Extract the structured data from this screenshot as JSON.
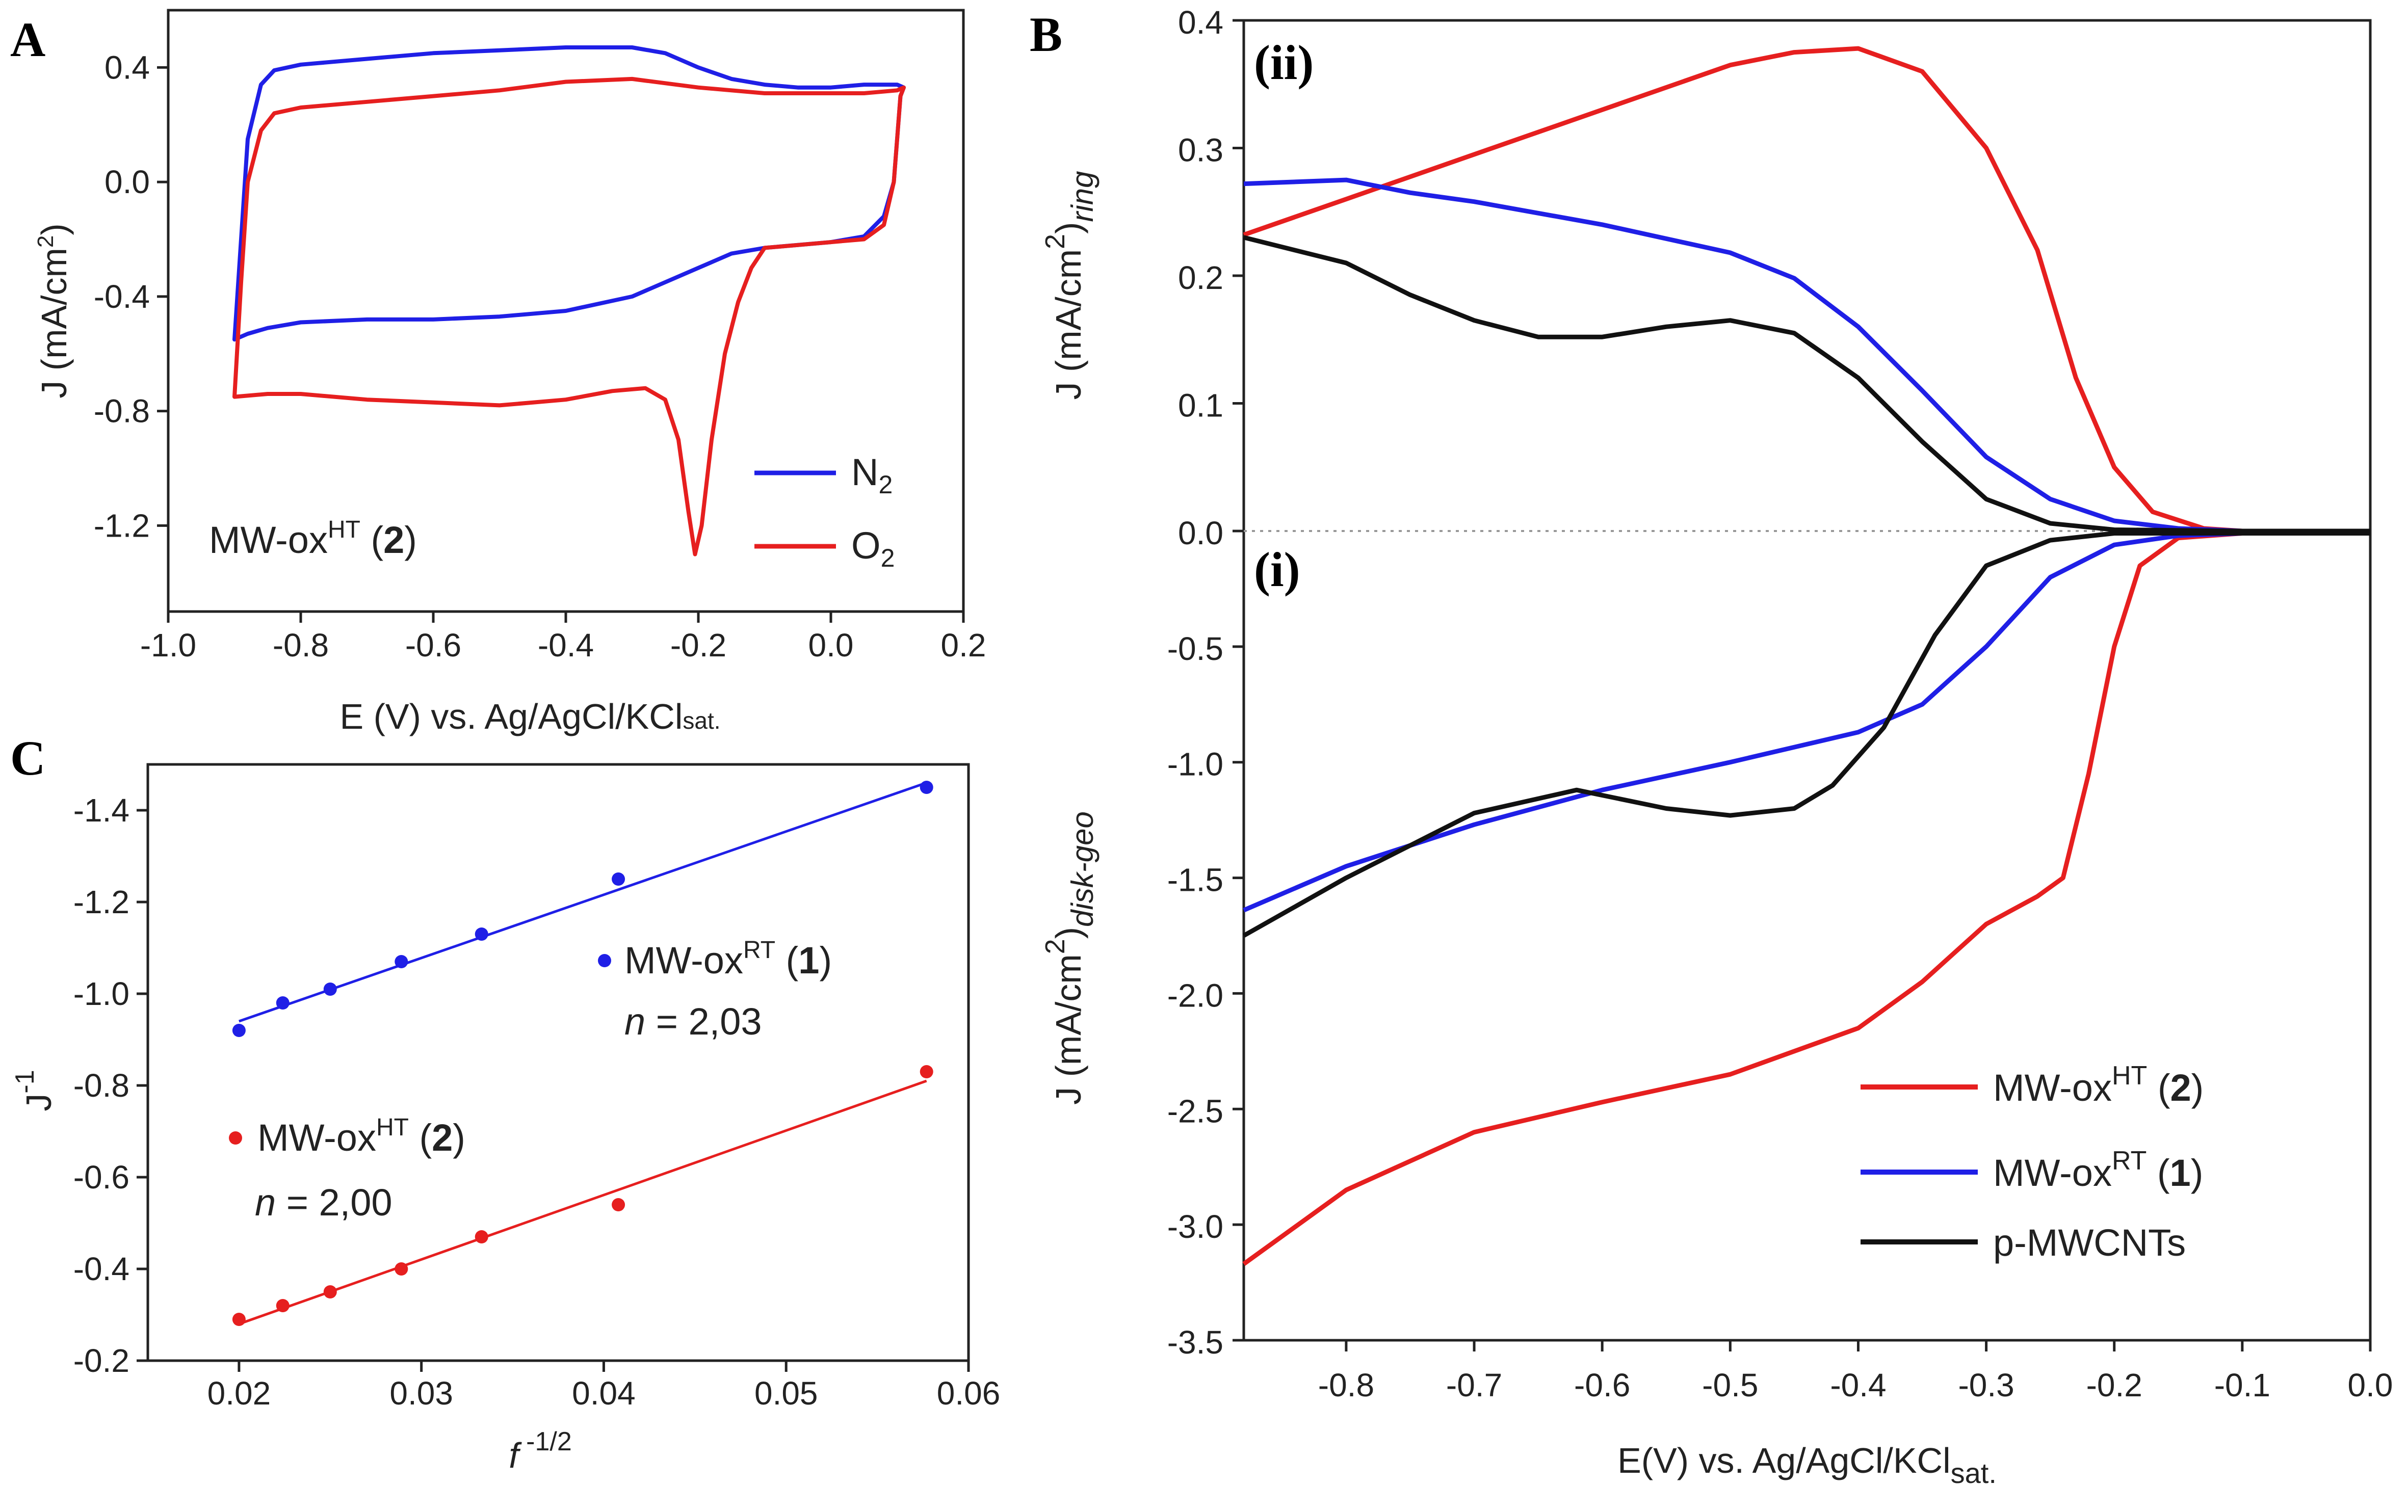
{
  "panels": {
    "A": {
      "label": "A",
      "chart_data": {
        "type": "line",
        "xlabel": "E (V) vs. Ag/AgCl/KCl",
        "xlabel_sub": "sat.",
        "ylabel": "J (mA/cm",
        "ylabel_sup": "2",
        "ylabel_end": ")",
        "xlim": [
          -1.0,
          0.2
        ],
        "ylim": [
          -1.5,
          0.6
        ],
        "xticks": [
          "-1.0",
          "-0.8",
          "-0.6",
          "-0.4",
          "-0.2",
          "0.0",
          "0.2"
        ],
        "yticks": [
          "0.4",
          "0.0",
          "-0.4",
          "-0.8",
          "-1.2"
        ],
        "annotation": {
          "main": "MW-ox",
          "sup": "HT",
          "pre": " (",
          "bold": "2",
          "post": ")"
        },
        "series": [
          {
            "name": "N2",
            "label_main": "N",
            "label_sub": "2",
            "color": "#1f1fe6",
            "points": [
              [
                -0.9,
                -0.55
              ],
              [
                -0.88,
                -0.53
              ],
              [
                -0.85,
                -0.51
              ],
              [
                -0.8,
                -0.49
              ],
              [
                -0.7,
                -0.48
              ],
              [
                -0.6,
                -0.48
              ],
              [
                -0.5,
                -0.47
              ],
              [
                -0.4,
                -0.45
              ],
              [
                -0.3,
                -0.4
              ],
              [
                -0.2,
                -0.3
              ],
              [
                -0.15,
                -0.25
              ],
              [
                -0.1,
                -0.23
              ],
              [
                0.0,
                -0.21
              ],
              [
                0.05,
                -0.19
              ],
              [
                0.08,
                -0.12
              ],
              [
                0.095,
                0.0
              ],
              [
                0.1,
                0.15
              ],
              [
                0.105,
                0.3
              ],
              [
                0.11,
                0.33
              ],
              [
                0.1,
                0.34
              ],
              [
                0.05,
                0.34
              ],
              [
                0.0,
                0.33
              ],
              [
                -0.05,
                0.33
              ],
              [
                -0.1,
                0.34
              ],
              [
                -0.15,
                0.36
              ],
              [
                -0.2,
                0.4
              ],
              [
                -0.25,
                0.45
              ],
              [
                -0.3,
                0.47
              ],
              [
                -0.4,
                0.47
              ],
              [
                -0.5,
                0.46
              ],
              [
                -0.6,
                0.45
              ],
              [
                -0.7,
                0.43
              ],
              [
                -0.8,
                0.41
              ],
              [
                -0.84,
                0.39
              ],
              [
                -0.86,
                0.34
              ],
              [
                -0.88,
                0.15
              ],
              [
                -0.89,
                -0.2
              ],
              [
                -0.9,
                -0.55
              ]
            ]
          },
          {
            "name": "O2",
            "label_main": "O",
            "label_sub": "2",
            "color": "#e61f1f",
            "points": [
              [
                -0.9,
                -0.75
              ],
              [
                -0.85,
                -0.74
              ],
              [
                -0.8,
                -0.74
              ],
              [
                -0.7,
                -0.76
              ],
              [
                -0.6,
                -0.77
              ],
              [
                -0.5,
                -0.78
              ],
              [
                -0.4,
                -0.76
              ],
              [
                -0.33,
                -0.73
              ],
              [
                -0.28,
                -0.72
              ],
              [
                -0.25,
                -0.76
              ],
              [
                -0.23,
                -0.9
              ],
              [
                -0.215,
                -1.15
              ],
              [
                -0.205,
                -1.3
              ],
              [
                -0.195,
                -1.2
              ],
              [
                -0.18,
                -0.9
              ],
              [
                -0.16,
                -0.6
              ],
              [
                -0.14,
                -0.42
              ],
              [
                -0.12,
                -0.3
              ],
              [
                -0.1,
                -0.23
              ],
              [
                -0.05,
                -0.22
              ],
              [
                0.0,
                -0.21
              ],
              [
                0.05,
                -0.2
              ],
              [
                0.08,
                -0.15
              ],
              [
                0.095,
                0.0
              ],
              [
                0.1,
                0.15
              ],
              [
                0.105,
                0.3
              ],
              [
                0.11,
                0.33
              ],
              [
                0.1,
                0.32
              ],
              [
                0.05,
                0.31
              ],
              [
                0.0,
                0.31
              ],
              [
                -0.1,
                0.31
              ],
              [
                -0.2,
                0.33
              ],
              [
                -0.3,
                0.36
              ],
              [
                -0.4,
                0.35
              ],
              [
                -0.5,
                0.32
              ],
              [
                -0.6,
                0.3
              ],
              [
                -0.7,
                0.28
              ],
              [
                -0.8,
                0.26
              ],
              [
                -0.84,
                0.24
              ],
              [
                -0.86,
                0.18
              ],
              [
                -0.88,
                0.0
              ],
              [
                -0.89,
                -0.35
              ],
              [
                -0.9,
                -0.75
              ]
            ]
          }
        ]
      }
    },
    "B": {
      "label": "B",
      "region_ii": "(ii)",
      "region_i": "(i)",
      "chart_data": {
        "type": "line",
        "xlabel": "E(V) vs. Ag/AgCl/KCl",
        "xlabel_sub": "sat.",
        "ylabel_ring": "J (mA/cm",
        "ylabel_ring_sup": "2",
        "ylabel_ring_end": ")",
        "ylabel_ring_sub": "ring",
        "ylabel_disk": "J (mA/cm",
        "ylabel_disk_sup": "2",
        "ylabel_disk_end": ")",
        "ylabel_disk_sub": "disk-geo",
        "xlim": [
          -0.88,
          0.0
        ],
        "ring_ylim": [
          0.0,
          0.4
        ],
        "disk_ylim": [
          -3.5,
          0.0
        ],
        "xticks": [
          "-0.8",
          "-0.7",
          "-0.6",
          "-0.5",
          "-0.4",
          "-0.3",
          "-0.2",
          "-0.1",
          "0.0"
        ],
        "ring_yticks": [
          "0.4",
          "0.3",
          "0.2",
          "0.1",
          "0.0"
        ],
        "disk_yticks": [
          "-0.5",
          "-1.0",
          "-1.5",
          "-2.0",
          "-2.5",
          "-3.0",
          "-3.5"
        ],
        "legend": [
          {
            "main": "MW-ox",
            "sup": "HT",
            "pre": " (",
            "bold": "2",
            "post": ")",
            "color": "#e61f1f"
          },
          {
            "main": "MW-ox",
            "sup": "RT",
            "pre": " (",
            "bold": "1",
            "post": ")",
            "color": "#1f1fe6"
          },
          {
            "main": "p-MWCNTs",
            "sup": "",
            "pre": "",
            "bold": "",
            "post": "",
            "color": "#111111"
          }
        ],
        "ring_series": [
          {
            "name": "MW-ox HT (2)",
            "color": "#e61f1f",
            "points": [
              [
                -0.88,
                0.232
              ],
              [
                -0.8,
                0.26
              ],
              [
                -0.7,
                0.295
              ],
              [
                -0.6,
                0.33
              ],
              [
                -0.5,
                0.365
              ],
              [
                -0.45,
                0.375
              ],
              [
                -0.4,
                0.378
              ],
              [
                -0.35,
                0.36
              ],
              [
                -0.3,
                0.3
              ],
              [
                -0.26,
                0.22
              ],
              [
                -0.23,
                0.12
              ],
              [
                -0.2,
                0.05
              ],
              [
                -0.17,
                0.015
              ],
              [
                -0.13,
                0.002
              ],
              [
                -0.1,
                0.0
              ],
              [
                0.0,
                0.0
              ]
            ]
          },
          {
            "name": "MW-ox RT (1)",
            "color": "#1f1fe6",
            "points": [
              [
                -0.88,
                0.272
              ],
              [
                -0.8,
                0.275
              ],
              [
                -0.75,
                0.265
              ],
              [
                -0.7,
                0.258
              ],
              [
                -0.6,
                0.24
              ],
              [
                -0.5,
                0.218
              ],
              [
                -0.45,
                0.198
              ],
              [
                -0.4,
                0.16
              ],
              [
                -0.35,
                0.11
              ],
              [
                -0.3,
                0.058
              ],
              [
                -0.25,
                0.025
              ],
              [
                -0.2,
                0.008
              ],
              [
                -0.15,
                0.002
              ],
              [
                -0.1,
                0.0
              ],
              [
                0.0,
                0.0
              ]
            ]
          },
          {
            "name": "p-MWCNTs",
            "color": "#111111",
            "points": [
              [
                -0.88,
                0.23
              ],
              [
                -0.8,
                0.21
              ],
              [
                -0.75,
                0.185
              ],
              [
                -0.7,
                0.165
              ],
              [
                -0.65,
                0.152
              ],
              [
                -0.6,
                0.152
              ],
              [
                -0.55,
                0.16
              ],
              [
                -0.5,
                0.165
              ],
              [
                -0.45,
                0.155
              ],
              [
                -0.4,
                0.12
              ],
              [
                -0.35,
                0.07
              ],
              [
                -0.3,
                0.025
              ],
              [
                -0.25,
                0.006
              ],
              [
                -0.2,
                0.001
              ],
              [
                -0.1,
                0.0
              ],
              [
                0.0,
                0.0
              ]
            ]
          }
        ],
        "disk_series": [
          {
            "name": "MW-ox HT (2)",
            "color": "#e61f1f",
            "points": [
              [
                -0.88,
                -3.17
              ],
              [
                -0.8,
                -2.85
              ],
              [
                -0.7,
                -2.6
              ],
              [
                -0.6,
                -2.47
              ],
              [
                -0.5,
                -2.35
              ],
              [
                -0.4,
                -2.15
              ],
              [
                -0.35,
                -1.95
              ],
              [
                -0.3,
                -1.7
              ],
              [
                -0.26,
                -1.58
              ],
              [
                -0.24,
                -1.5
              ],
              [
                -0.22,
                -1.05
              ],
              [
                -0.2,
                -0.5
              ],
              [
                -0.18,
                -0.15
              ],
              [
                -0.15,
                -0.03
              ],
              [
                -0.1,
                -0.01
              ],
              [
                0.0,
                -0.01
              ]
            ]
          },
          {
            "name": "MW-ox RT (1)",
            "color": "#1f1fe6",
            "points": [
              [
                -0.88,
                -1.64
              ],
              [
                -0.8,
                -1.45
              ],
              [
                -0.7,
                -1.27
              ],
              [
                -0.6,
                -1.12
              ],
              [
                -0.5,
                -1.0
              ],
              [
                -0.4,
                -0.87
              ],
              [
                -0.35,
                -0.75
              ],
              [
                -0.3,
                -0.5
              ],
              [
                -0.25,
                -0.2
              ],
              [
                -0.2,
                -0.06
              ],
              [
                -0.15,
                -0.02
              ],
              [
                -0.1,
                -0.01
              ],
              [
                0.0,
                -0.01
              ]
            ]
          },
          {
            "name": "p-MWCNTs",
            "color": "#111111",
            "points": [
              [
                -0.88,
                -1.75
              ],
              [
                -0.8,
                -1.5
              ],
              [
                -0.7,
                -1.22
              ],
              [
                -0.62,
                -1.12
              ],
              [
                -0.55,
                -1.2
              ],
              [
                -0.5,
                -1.23
              ],
              [
                -0.45,
                -1.2
              ],
              [
                -0.42,
                -1.1
              ],
              [
                -0.38,
                -0.85
              ],
              [
                -0.34,
                -0.45
              ],
              [
                -0.3,
                -0.15
              ],
              [
                -0.25,
                -0.04
              ],
              [
                -0.2,
                -0.01
              ],
              [
                0.0,
                -0.01
              ]
            ]
          }
        ]
      }
    },
    "C": {
      "label": "C",
      "chart_data": {
        "type": "scatter",
        "xlabel_main": "f",
        "xlabel_sup": " -1/2",
        "ylabel_main": "J",
        "ylabel_sup": "-1",
        "xlim": [
          0.015,
          0.06
        ],
        "ylim": [
          -1.5,
          -0.2
        ],
        "xticks": [
          "0.02",
          "0.03",
          "0.04",
          "0.05",
          "0.06"
        ],
        "yticks": [
          "-1.4",
          "-1.2",
          "-1.0",
          "-0.8",
          "-0.6",
          "-0.4",
          "-0.2"
        ],
        "series": [
          {
            "name": "MW-ox RT (1)",
            "main": "MW-ox",
            "sup": "RT",
            "pre": " (",
            "bold": "1",
            "post": ")",
            "n_prefix": "n",
            "n_text": " = 2,03",
            "color": "#1f1fe6",
            "x": [
              0.02,
              0.0224,
              0.025,
              0.0289,
              0.0333,
              0.0408,
              0.0577
            ],
            "y": [
              -0.92,
              -0.98,
              -1.01,
              -1.07,
              -1.13,
              -1.25,
              -1.45
            ],
            "fit": [
              [
                0.02,
                -0.94
              ],
              [
                0.0577,
                -1.46
              ]
            ]
          },
          {
            "name": "MW-ox HT (2)",
            "main": "MW-ox",
            "sup": "HT",
            "pre": " (",
            "bold": "2",
            "post": ")",
            "n_prefix": "n",
            "n_text": " = 2,00",
            "color": "#e61f1f",
            "x": [
              0.02,
              0.0224,
              0.025,
              0.0289,
              0.0333,
              0.0408,
              0.0577
            ],
            "y": [
              -0.29,
              -0.32,
              -0.35,
              -0.4,
              -0.47,
              -0.54,
              -0.83
            ],
            "fit": [
              [
                0.02,
                -0.28
              ],
              [
                0.0577,
                -0.81
              ]
            ]
          }
        ]
      }
    }
  }
}
